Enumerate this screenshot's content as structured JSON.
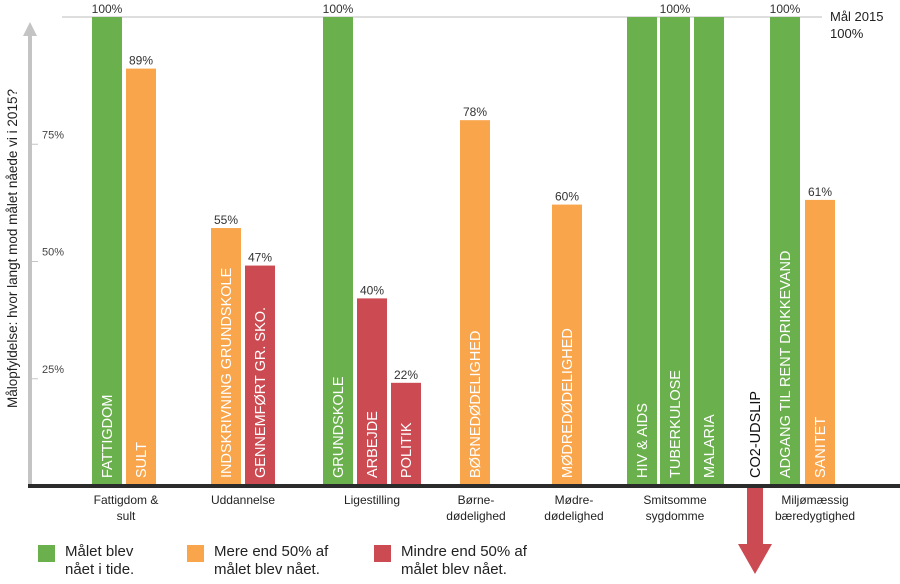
{
  "chart_data": {
    "type": "bar",
    "ylabel": "Målopfyldelse: hvor langt mod målet nåede vi i 2015?",
    "ylim": [
      0,
      100
    ],
    "yticks": [
      {
        "value": 25,
        "label": "25%"
      },
      {
        "value": 50,
        "label": "50%"
      },
      {
        "value": 75,
        "label": "75%"
      }
    ],
    "goal": {
      "value": 100,
      "label_line1": "Mål 2015",
      "label_line2": "100%"
    },
    "statuses": [
      {
        "key": "green",
        "color": "#6ab04c",
        "label": "Målet blev\nnået i tide."
      },
      {
        "key": "orange",
        "color": "#f9a54b",
        "label": "Mere end 50% af\nmålet blev nået."
      },
      {
        "key": "red",
        "color": "#cc4a52",
        "label": "Mindre end 50% af\nmålet blev nået."
      }
    ],
    "groups": [
      {
        "label": "Fattigdom &\nsult",
        "bars": [
          {
            "name": "FATTIGDOM",
            "value": 100,
            "value_label": "100%",
            "status": "green"
          },
          {
            "name": "SULT",
            "value": 89,
            "value_label": "89%",
            "status": "orange"
          }
        ]
      },
      {
        "label": "Uddannelse",
        "bars": [
          {
            "name": "INDSKRIVNING GRUNDSKOLE",
            "value": 55,
            "value_label": "55%",
            "status": "orange"
          },
          {
            "name": "GENNEMFØRT GR. SKO.",
            "value": 47,
            "value_label": "47%",
            "status": "red"
          }
        ]
      },
      {
        "label": "Ligestilling",
        "bars": [
          {
            "name": "GRUNDSKOLE",
            "value": 100,
            "value_label": "100%",
            "status": "green"
          },
          {
            "name": "ARBEJDE",
            "value": 40,
            "value_label": "40%",
            "status": "red"
          },
          {
            "name": "POLITIK",
            "value": 22,
            "value_label": "22%",
            "status": "red"
          }
        ]
      },
      {
        "label": "Børne-\ndødelighed",
        "bars": [
          {
            "name": "BØRNEDØDELIGHED",
            "value": 78,
            "value_label": "78%",
            "status": "orange"
          }
        ]
      },
      {
        "label": "Mødre-\ndødelighed",
        "bars": [
          {
            "name": "MØDREDØDELIGHED",
            "value": 60,
            "value_label": "60%",
            "status": "orange"
          }
        ]
      },
      {
        "label": "Smitsomme\nsygdomme",
        "bars": [
          {
            "name": "HIV & AIDS",
            "value": 100,
            "value_label": "",
            "status": "green"
          },
          {
            "name": "TUBERKULOSE",
            "value": 100,
            "value_label": "100%",
            "status": "green"
          },
          {
            "name": "MALARIA",
            "value": 100,
            "value_label": "",
            "status": "green"
          }
        ]
      },
      {
        "label": "Miljømæssig\nbæredygtighed",
        "bars": [
          {
            "name": "CO2-UDSLIP",
            "value": null,
            "value_label": "",
            "status": "decline"
          },
          {
            "name": "ADGANG TIL RENT DRIKKEVAND",
            "value": 100,
            "value_label": "100%",
            "status": "green"
          },
          {
            "name": "SANITET",
            "value": 61,
            "value_label": "61%",
            "status": "orange"
          }
        ]
      }
    ],
    "decline_color": "#cc4a52"
  }
}
